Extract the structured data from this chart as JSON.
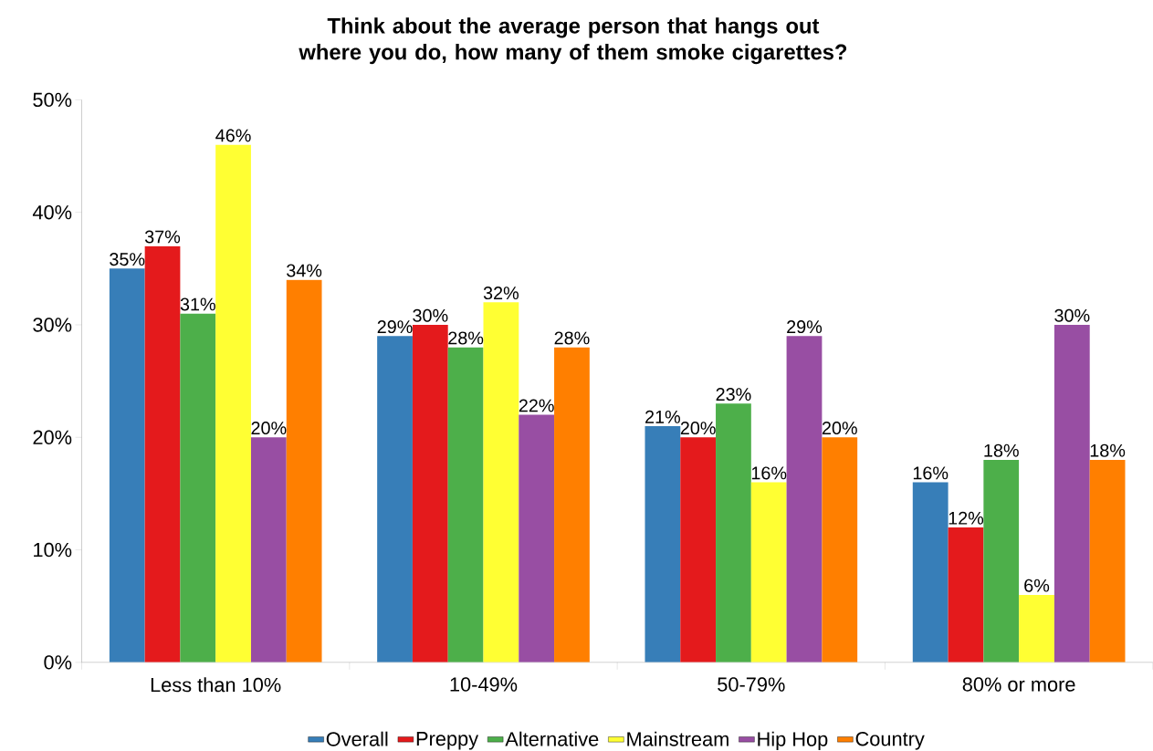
{
  "chart_data": {
    "type": "bar",
    "title": "Think about the average person that hangs out where you do, how many of them smoke cigarettes?",
    "categories": [
      "Less than 10%",
      "10-49%",
      "50-79%",
      "80% or more"
    ],
    "ylim": [
      0,
      50
    ],
    "yticks": [
      {
        "value": 0,
        "label": "0%"
      },
      {
        "value": 10,
        "label": "10%"
      },
      {
        "value": 20,
        "label": "20%"
      },
      {
        "value": 30,
        "label": "30%"
      },
      {
        "value": 40,
        "label": "40%"
      },
      {
        "value": 50,
        "label": "50%"
      }
    ],
    "grid": false,
    "legend": "bottom",
    "series": [
      {
        "name": "Overall",
        "color": "#377eb8",
        "values": [
          35,
          29,
          21,
          16
        ],
        "value_labels": [
          "35%",
          "29%",
          "21%",
          "16%"
        ]
      },
      {
        "name": "Preppy",
        "color": "#e41a1c",
        "values": [
          37,
          30,
          20,
          12
        ],
        "value_labels": [
          "37%",
          "30%",
          "20%",
          "12%"
        ]
      },
      {
        "name": "Alternative",
        "color": "#4daf4a",
        "values": [
          31,
          28,
          23,
          18
        ],
        "value_labels": [
          "31%",
          "28%",
          "23%",
          "18%"
        ]
      },
      {
        "name": "Mainstream",
        "color": "#ffff33",
        "values": [
          46,
          32,
          16,
          6
        ],
        "value_labels": [
          "46%",
          "32%",
          "16%",
          "6%"
        ]
      },
      {
        "name": "Hip Hop",
        "color": "#984ea3",
        "values": [
          20,
          22,
          29,
          30
        ],
        "value_labels": [
          "20%",
          "22%",
          "29%",
          "30%"
        ]
      },
      {
        "name": "Country",
        "color": "#ff7f00",
        "values": [
          34,
          28,
          20,
          18
        ],
        "value_labels": [
          "34%",
          "28%",
          "20%",
          "18%"
        ]
      }
    ]
  }
}
